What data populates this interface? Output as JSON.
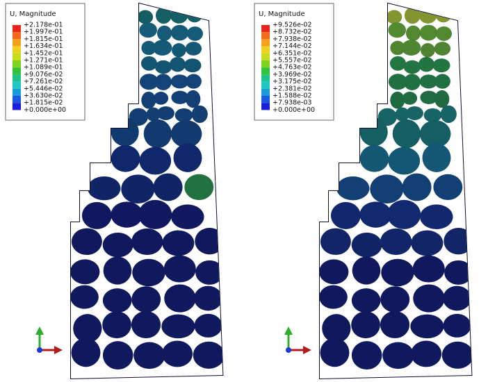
{
  "panels": [
    {
      "legend": {
        "title": "U, Magnitude",
        "labels": [
          "+2.178e-01",
          "+1.997e-01",
          "+1.815e-01",
          "+1.634e-01",
          "+1.452e-01",
          "+1.271e-01",
          "+1.089e-01",
          "+9.076e-02",
          "+7.261e-02",
          "+5.446e-02",
          "+3.630e-02",
          "+1.815e-02",
          "+0.000e+00"
        ],
        "colors": [
          "#e8261c",
          "#f26a1b",
          "#f5a11c",
          "#f0d01e",
          "#c5dd1f",
          "#7ed321",
          "#33c43a",
          "#1fc28a",
          "#1ec7c4",
          "#1a9bd9",
          "#1b58e0",
          "#1d1fd8"
        ]
      }
    },
    {
      "legend": {
        "title": "U, Magnitude",
        "labels": [
          "+9.526e-02",
          "+8.732e-02",
          "+7.938e-02",
          "+7.144e-02",
          "+6.351e-02",
          "+5.557e-02",
          "+4.763e-02",
          "+3.969e-02",
          "+3.175e-02",
          "+2.381e-02",
          "+1.588e-02",
          "+7.938e-03",
          "+0.000e+00"
        ],
        "colors": [
          "#e8261c",
          "#f26a1b",
          "#f5a11c",
          "#f0d01e",
          "#c5dd1f",
          "#7ed321",
          "#33c43a",
          "#1fc28a",
          "#1ec7c4",
          "#1a9bd9",
          "#1b58e0",
          "#1d1fd8"
        ]
      }
    }
  ]
}
